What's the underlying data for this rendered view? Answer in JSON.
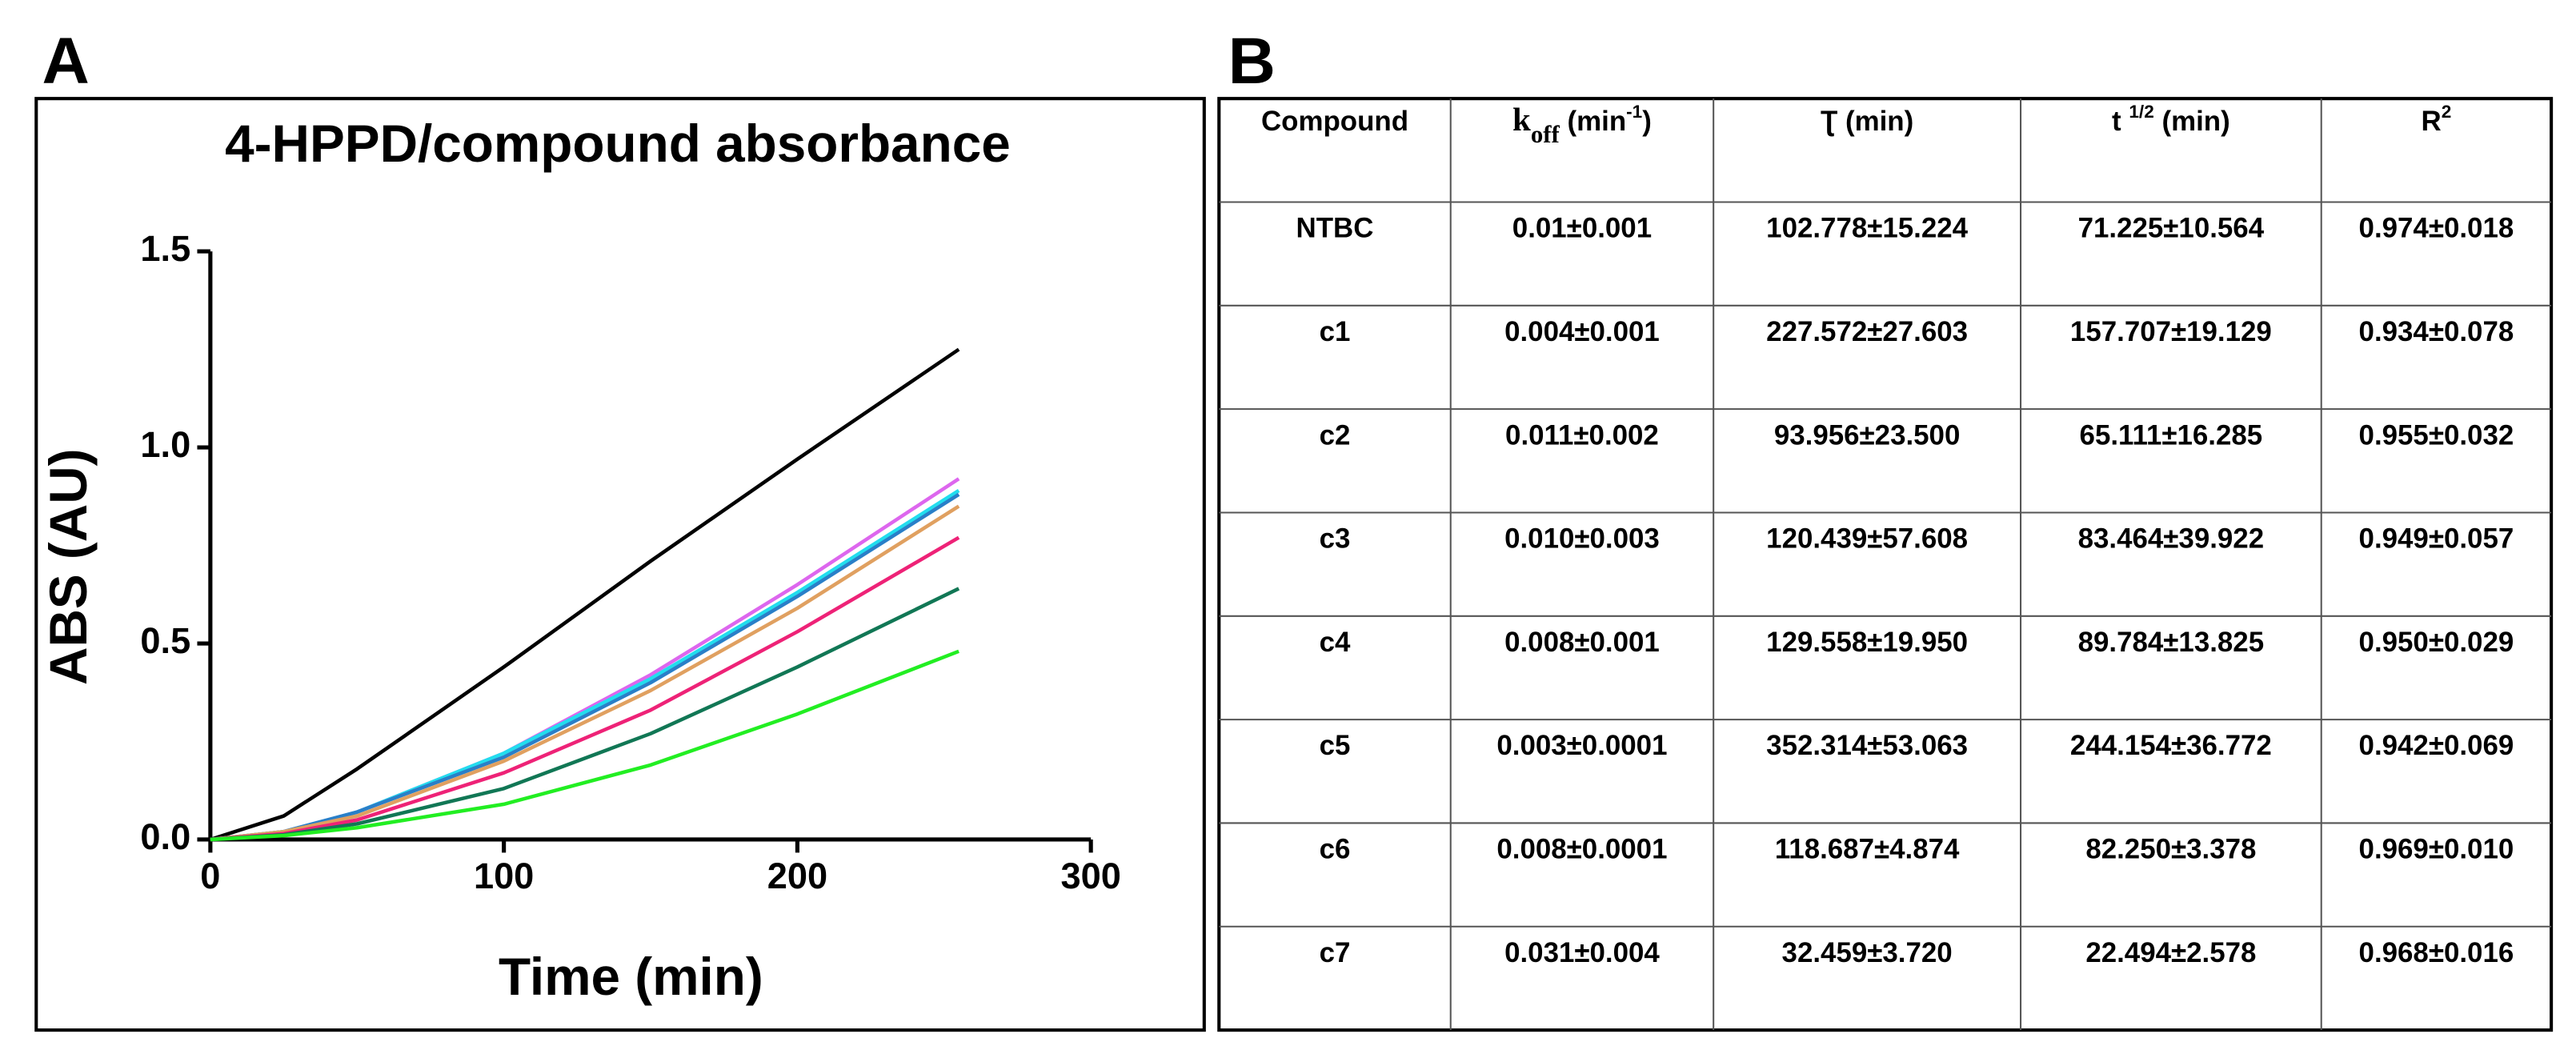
{
  "chart_data": {
    "type": "line",
    "panel_label": "A",
    "title": "4-HPPD/compound absorbance",
    "x_label": "Time (min)",
    "y_label": "ABS (AU)",
    "x": [
      0,
      25,
      50,
      100,
      150,
      200,
      255
    ],
    "series": [
      {
        "color": "#000000",
        "values": [
          0,
          0.06,
          0.18,
          0.44,
          0.71,
          0.97,
          1.25
        ]
      },
      {
        "color": "#dd66ee",
        "values": [
          0,
          0.02,
          0.07,
          0.22,
          0.42,
          0.65,
          0.92
        ]
      },
      {
        "color": "#22ddee",
        "values": [
          0,
          0.02,
          0.07,
          0.22,
          0.41,
          0.63,
          0.89
        ]
      },
      {
        "color": "#2a7fc8",
        "values": [
          0,
          0.02,
          0.07,
          0.21,
          0.4,
          0.62,
          0.88
        ]
      },
      {
        "color": "#e0a060",
        "values": [
          0,
          0.02,
          0.06,
          0.2,
          0.38,
          0.59,
          0.85
        ]
      },
      {
        "color": "#ee2277",
        "values": [
          0,
          0.015,
          0.05,
          0.17,
          0.33,
          0.53,
          0.77
        ]
      },
      {
        "color": "#117755",
        "values": [
          0,
          0.012,
          0.04,
          0.13,
          0.27,
          0.44,
          0.64
        ]
      },
      {
        "color": "#22ee22",
        "values": [
          0,
          0.01,
          0.03,
          0.09,
          0.19,
          0.32,
          0.48
        ]
      }
    ],
    "xlim": [
      0,
      300
    ],
    "xticks": [
      0,
      100,
      200,
      300
    ],
    "ylim": [
      0,
      1.5
    ],
    "yticks": [
      {
        "value": 0,
        "label": "0.0"
      },
      {
        "value": 0.5,
        "label": "0.5"
      },
      {
        "value": 1,
        "label": "1.0"
      },
      1.5
    ]
  },
  "table": {
    "panel_label": "B",
    "header": [
      [
        {
          "t": "Compound"
        }
      ],
      [
        {
          "t": "k",
          "serif": true
        },
        {
          "t": "off",
          "sub": true,
          "serif": true
        },
        {
          "t": " (min"
        },
        {
          "t": "-1",
          "sup": true
        },
        {
          "t": ")"
        }
      ],
      [
        {
          "t": "Ʈ (min)"
        }
      ],
      [
        {
          "t": "t "
        },
        {
          "t": "1/2",
          "sup": true
        },
        {
          "t": " (min)"
        }
      ],
      [
        {
          "t": "R"
        },
        {
          "t": "2",
          "sup": true
        }
      ]
    ],
    "rows": [
      [
        "NTBC",
        "0.01±0.001",
        "102.778±15.224",
        "71.225±10.564",
        "0.974±0.018"
      ],
      [
        "c1",
        "0.004±0.001",
        "227.572±27.603",
        "157.707±19.129",
        "0.934±0.078"
      ],
      [
        "c2",
        "0.011±0.002",
        "93.956±23.500",
        "65.111±16.285",
        "0.955±0.032"
      ],
      [
        "c3",
        "0.010±0.003",
        "120.439±57.608",
        "83.464±39.922",
        "0.949±0.057"
      ],
      [
        "c4",
        "0.008±0.001",
        "129.558±19.950",
        "89.784±13.825",
        "0.950±0.029"
      ],
      [
        "c5",
        "0.003±0.0001",
        "352.314±53.063",
        "244.154±36.772",
        "0.942±0.069"
      ],
      [
        "c6",
        "0.008±0.0001",
        "118.687±4.874",
        "82.250±3.378",
        "0.969±0.010"
      ],
      [
        "c7",
        "0.031±0.004",
        "32.459±3.720",
        "22.494±2.578",
        "0.968±0.016"
      ]
    ]
  }
}
